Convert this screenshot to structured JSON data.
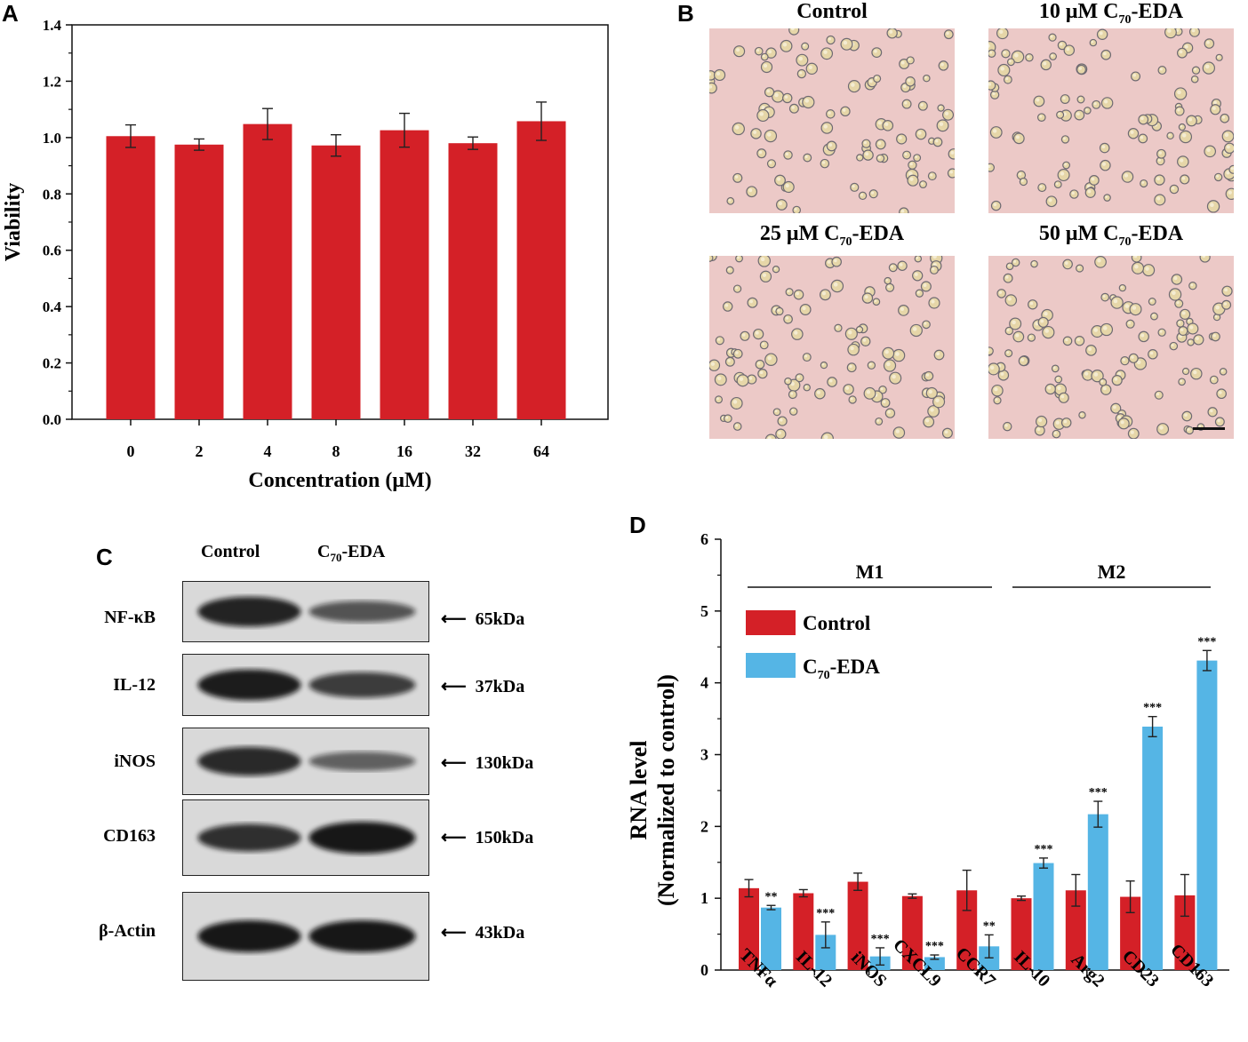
{
  "panels": {
    "a_letter": "A",
    "b_letter": "B",
    "c_letter": "C",
    "d_letter": "D"
  },
  "panelB": {
    "titles": [
      "Control",
      "10 μM C70-EDA",
      "25 μM C70-EDA",
      "50 μM C70-EDA"
    ],
    "title_parts": [
      {
        "pre": "Control",
        "sub": "",
        "post": ""
      },
      {
        "pre": "10 μM C",
        "sub": "70",
        "post": "-EDA"
      },
      {
        "pre": "25 μM C",
        "sub": "70",
        "post": "-EDA"
      },
      {
        "pre": "50 μM C",
        "sub": "70",
        "post": "-EDA"
      }
    ],
    "background_color": "#ecc9c7"
  },
  "panelC": {
    "columns": {
      "control": "Control",
      "treat_pre": "C",
      "treat_sub": "70",
      "treat_post": "-EDA"
    },
    "rows": [
      {
        "label": "NF-κB",
        "kda": "65kDa",
        "control_intensity": 0.9,
        "treat_intensity": 0.5
      },
      {
        "label": "IL-12",
        "kda": "37kDa",
        "control_intensity": 0.95,
        "treat_intensity": 0.7
      },
      {
        "label": "iNOS",
        "kda": "130kDa",
        "control_intensity": 0.85,
        "treat_intensity": 0.4
      },
      {
        "label": "CD163",
        "kda": "150kDa",
        "control_intensity": 0.8,
        "treat_intensity": 1.0
      },
      {
        "label": "β-Actin",
        "kda": "43kDa",
        "control_intensity": 1.0,
        "treat_intensity": 1.0
      }
    ]
  },
  "chart_data": [
    {
      "type": "bar",
      "panel": "A",
      "title": "",
      "xlabel": "Concentration (μM)",
      "ylabel": "Viability",
      "categories": [
        "0",
        "2",
        "4",
        "8",
        "16",
        "32",
        "64"
      ],
      "values": [
        1.005,
        0.975,
        1.048,
        0.972,
        1.026,
        0.98,
        1.058
      ],
      "errors": [
        0.04,
        0.02,
        0.055,
        0.038,
        0.06,
        0.022,
        0.068
      ],
      "ylim": [
        0.0,
        1.4
      ],
      "yticks": [
        "0.0",
        "0.2",
        "0.4",
        "0.6",
        "0.8",
        "1.0",
        "1.2",
        "1.4"
      ],
      "color": "#d42027"
    },
    {
      "type": "bar",
      "panel": "D",
      "title": "",
      "xlabel": "",
      "ylabel_line1": "RNA level",
      "ylabel_line2": "(Normalized to control)",
      "categories": [
        "TNFα",
        "IL-12",
        "iNOS",
        "CXCL9",
        "CCR7",
        "IL-10",
        "Arg2",
        "CD23",
        "CD163"
      ],
      "ylim": [
        0,
        6
      ],
      "yticks": [
        "0",
        "1",
        "2",
        "3",
        "4",
        "5",
        "6"
      ],
      "series": [
        {
          "name": "Control",
          "color": "#d42027",
          "values": [
            1.14,
            1.07,
            1.23,
            1.03,
            1.11,
            1.0,
            1.11,
            1.02,
            1.04
          ],
          "errors": [
            0.12,
            0.05,
            0.12,
            0.03,
            0.28,
            0.03,
            0.22,
            0.22,
            0.29
          ]
        },
        {
          "name": "C70-EDA",
          "color": "#55b5e5",
          "values": [
            0.87,
            0.49,
            0.19,
            0.18,
            0.33,
            1.49,
            2.17,
            3.39,
            4.31
          ],
          "errors": [
            0.03,
            0.18,
            0.12,
            0.03,
            0.16,
            0.07,
            0.18,
            0.14,
            0.14
          ]
        }
      ],
      "significance": [
        "**",
        "***",
        "***",
        "***",
        "**",
        "***",
        "***",
        "***",
        "***"
      ],
      "groups": [
        {
          "label": "M1",
          "from": 0,
          "to": 4
        },
        {
          "label": "M2",
          "from": 5,
          "to": 8
        }
      ],
      "legend": {
        "control": "Control",
        "treat_pre": "C",
        "treat_sub": "70",
        "treat_post": "-EDA"
      },
      "legend_position": "top-left"
    }
  ]
}
